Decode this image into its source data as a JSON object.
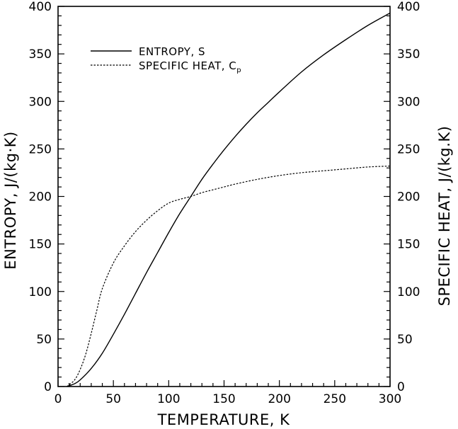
{
  "chart_data": {
    "type": "line",
    "xlabel": "TEMPERATURE,   K",
    "ylabel_left": "ENTROPY,  J/(kg·K)",
    "ylabel_right": "SPECIFIC  HEAT,  J/(kg.K)",
    "xlim": [
      0,
      300
    ],
    "ylim_left": [
      0,
      400
    ],
    "ylim_right": [
      0,
      400
    ],
    "x_ticks": [
      0,
      50,
      100,
      150,
      200,
      250,
      300
    ],
    "y_ticks": [
      0,
      50,
      100,
      150,
      200,
      250,
      300,
      350,
      400
    ],
    "grid": false,
    "legend_position": "top-left",
    "legend": [
      {
        "label": "ENTROPY,  S",
        "subscript": "",
        "style": "solid"
      },
      {
        "label": "SPECIFIC  HEAT,  C",
        "subscript": "p",
        "style": "dashed"
      }
    ],
    "series": [
      {
        "name": "ENTROPY,  S",
        "axis": "left",
        "style": "solid",
        "x": [
          8,
          15,
          20,
          30,
          40,
          50,
          60,
          70,
          80,
          90,
          100,
          110,
          120,
          130,
          140,
          150,
          160,
          170,
          180,
          190,
          200,
          220,
          240,
          260,
          280,
          300
        ],
        "y": [
          0,
          3,
          7,
          19,
          35,
          55,
          76,
          98,
          120,
          141,
          162,
          182,
          200,
          218,
          234,
          249,
          263,
          276,
          288,
          299,
          310,
          331,
          349,
          365,
          380,
          393
        ]
      },
      {
        "name": "SPECIFIC  HEAT,  Cp",
        "axis": "right",
        "style": "dashed",
        "x": [
          8,
          15,
          20,
          25,
          30,
          35,
          40,
          50,
          60,
          70,
          80,
          90,
          100,
          110,
          120,
          130,
          140,
          150,
          160,
          180,
          200,
          220,
          240,
          260,
          280,
          300
        ],
        "y": [
          0,
          7,
          18,
          34,
          56,
          80,
          103,
          130,
          148,
          163,
          175,
          185,
          193,
          197,
          200,
          204,
          207,
          210,
          213,
          218,
          222,
          225,
          227,
          229,
          231,
          232
        ]
      }
    ]
  }
}
